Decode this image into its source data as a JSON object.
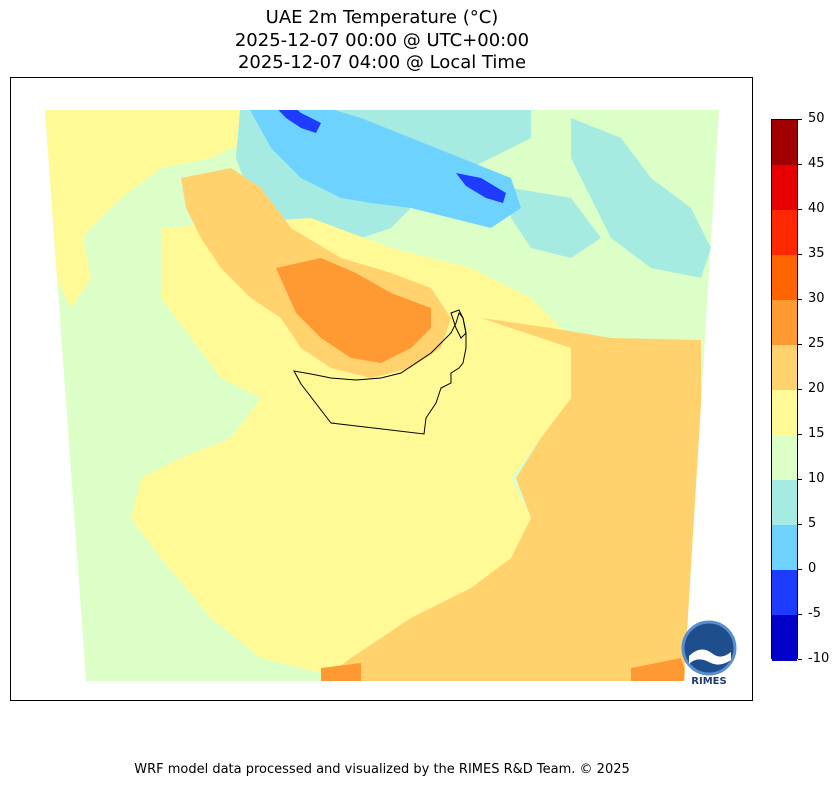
{
  "title": {
    "line1": "UAE 2m Temperature (°C)",
    "line2": "2025-12-07 00:00 @ UTC+00:00",
    "line3": "2025-12-07 04:00 @ Local Time"
  },
  "colorbar": {
    "labels": [
      "50",
      "45",
      "40",
      "35",
      "30",
      "25",
      "20",
      "15",
      "10",
      "5",
      "0",
      "-5",
      "-10"
    ],
    "colors": [
      "#a00000",
      "#e60000",
      "#ff2800",
      "#ff6400",
      "#ff9a32",
      "#ffd26e",
      "#fffa96",
      "#dcffc8",
      "#a5ebe1",
      "#6ed2ff",
      "#1e3cff",
      "#0000c8"
    ]
  },
  "palette": {
    "band_10_15": "#dcffc8",
    "band_15_20": "#fffa96",
    "band_20_25": "#ffd26e",
    "band_25_30": "#ff9a32",
    "band_5_10": "#a5ebe1",
    "band_0_5": "#6ed2ff",
    "band_m5_0": "#1e3cff"
  },
  "logo": {
    "text": "RIMES",
    "icon": "rimes-logo-icon"
  },
  "footer": "WRF model data processed and visualized by the RIMES R&D Team. © 2025"
}
